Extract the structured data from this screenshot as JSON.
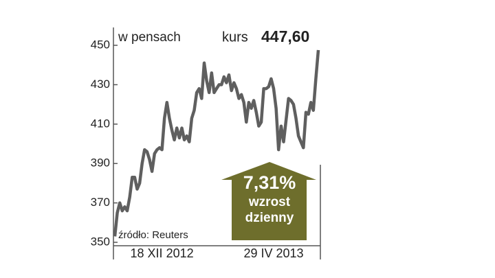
{
  "chart_data": {
    "type": "line",
    "unit_label": "w pensach",
    "price_caption": "kurs",
    "price_text": "447,60",
    "source": "źródło: Reuters",
    "annotation": {
      "change": "7,31%",
      "line1": "wzrost",
      "line2": "dzienny",
      "color": "#6e6e2c"
    },
    "color": "#5f5f5f",
    "categories": [
      null,
      null,
      null,
      null,
      null,
      null,
      null,
      null,
      null,
      null,
      null,
      null,
      null,
      null,
      null,
      null,
      null,
      null,
      null,
      "18 XII 2012",
      null,
      null,
      null,
      null,
      null,
      null,
      null,
      null,
      null,
      null,
      null,
      null,
      null,
      null,
      null,
      null,
      null,
      null,
      null,
      null,
      null,
      null,
      null,
      null,
      null,
      null,
      null,
      null,
      null,
      null,
      null,
      null,
      null,
      null,
      null,
      null,
      null,
      null,
      null,
      null,
      null,
      null,
      null,
      null,
      "29 IV 2013",
      null,
      null,
      null,
      null,
      null,
      null,
      null,
      null,
      null,
      null,
      null,
      null,
      null,
      null,
      null,
      null,
      null,
      null
    ],
    "values": [
      353,
      365,
      370,
      366,
      368,
      366,
      373,
      383,
      383,
      377,
      380,
      390,
      397,
      396,
      392,
      386,
      395,
      397,
      398,
      397,
      413,
      421,
      413,
      407,
      402,
      408,
      403,
      408,
      402,
      404,
      401,
      413,
      417,
      426,
      428,
      423,
      441,
      432,
      426,
      436,
      426,
      428,
      430,
      430,
      434,
      431,
      435,
      427,
      431,
      428,
      423,
      425,
      421,
      411,
      421,
      418,
      422,
      416,
      409,
      411,
      428,
      428,
      429,
      433,
      428,
      418,
      397,
      409,
      401,
      412,
      423,
      422,
      420,
      413,
      404,
      401,
      398,
      416,
      415,
      421,
      417,
      433,
      447.6
    ],
    "ylim": [
      350,
      450
    ],
    "yticks": [
      350,
      370,
      390,
      410,
      430,
      450
    ]
  }
}
